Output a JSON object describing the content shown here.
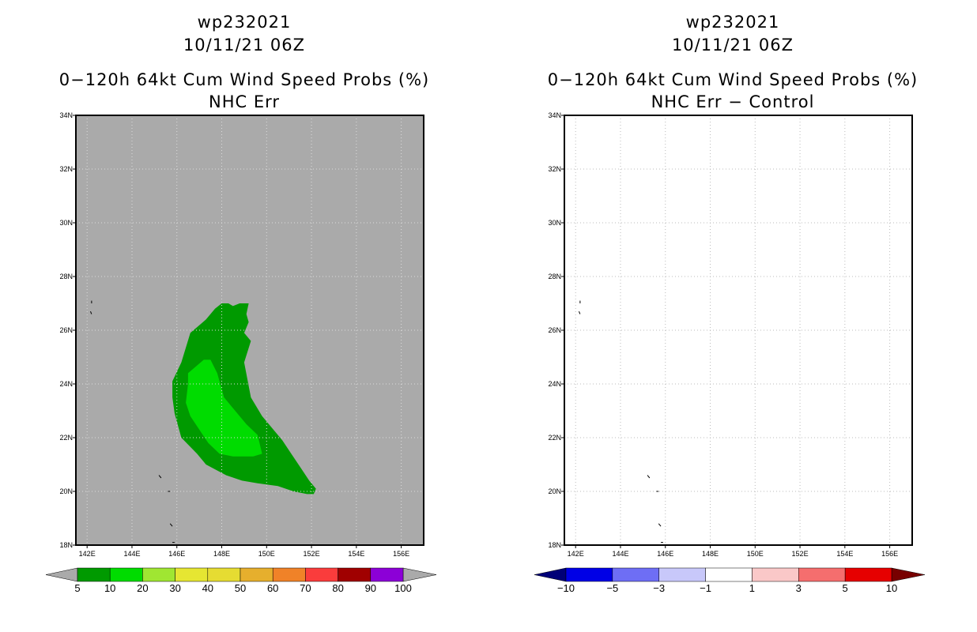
{
  "panels": [
    {
      "storm_id": "wp232021",
      "datetime": "10/11/21 06Z",
      "title": "0−120h 64kt Cum Wind Speed Probs (%)",
      "subtitle": "NHC Err"
    },
    {
      "storm_id": "wp232021",
      "datetime": "10/11/21 06Z",
      "title": "0−120h 64kt Cum Wind Speed Probs (%)",
      "subtitle": "NHC Err − Control"
    }
  ],
  "chart_data": [
    {
      "type": "heatmap",
      "title": "0−120h 64kt Cum Wind Speed Probs (%)",
      "subtitle": "NHC Err",
      "xlim": [
        141.5,
        157
      ],
      "ylim": [
        18,
        34
      ],
      "x_ticks": [
        "142E",
        "144E",
        "146E",
        "148E",
        "150E",
        "152E",
        "154E",
        "156E"
      ],
      "y_ticks": [
        "18N",
        "20N",
        "22N",
        "24N",
        "26N",
        "28N",
        "30N",
        "32N",
        "34N"
      ],
      "background_color": "#aaaaaa",
      "grid": true,
      "contours": [
        {
          "level": 5,
          "color": "#009a00",
          "points": [
            [
              146.2,
              24.8
            ],
            [
              146.6,
              25.9
            ],
            [
              147.3,
              26.4
            ],
            [
              147.7,
              26.8
            ],
            [
              148.0,
              27.0
            ],
            [
              148.3,
              27.0
            ],
            [
              148.5,
              26.9
            ],
            [
              148.8,
              27.0
            ],
            [
              149.2,
              27.0
            ],
            [
              149.1,
              26.6
            ],
            [
              149.2,
              26.3
            ],
            [
              149.0,
              25.9
            ],
            [
              149.3,
              25.6
            ],
            [
              149.0,
              24.8
            ],
            [
              149.3,
              23.5
            ],
            [
              149.8,
              22.8
            ],
            [
              150.2,
              22.4
            ],
            [
              150.7,
              21.9
            ],
            [
              151.1,
              21.4
            ],
            [
              151.5,
              20.9
            ],
            [
              151.9,
              20.4
            ],
            [
              152.2,
              20.1
            ],
            [
              152.1,
              19.9
            ],
            [
              151.8,
              19.9
            ],
            [
              151.2,
              20.0
            ],
            [
              150.5,
              20.2
            ],
            [
              149.6,
              20.3
            ],
            [
              148.9,
              20.4
            ],
            [
              148.2,
              20.6
            ],
            [
              147.3,
              21.0
            ],
            [
              146.9,
              21.4
            ],
            [
              146.2,
              22.0
            ],
            [
              145.9,
              22.9
            ],
            [
              145.8,
              23.5
            ],
            [
              145.8,
              24.1
            ]
          ]
        },
        {
          "level": 10,
          "color": "#00dc00",
          "points": [
            [
              146.5,
              24.4
            ],
            [
              147.2,
              24.9
            ],
            [
              147.5,
              24.9
            ],
            [
              147.8,
              24.4
            ],
            [
              148.1,
              23.5
            ],
            [
              148.5,
              23.1
            ],
            [
              149.1,
              22.5
            ],
            [
              149.6,
              22.1
            ],
            [
              149.8,
              21.4
            ],
            [
              149.4,
              21.3
            ],
            [
              148.5,
              21.3
            ],
            [
              147.9,
              21.4
            ],
            [
              147.4,
              21.8
            ],
            [
              147.0,
              22.3
            ],
            [
              146.6,
              22.8
            ],
            [
              146.4,
              23.3
            ],
            [
              146.5,
              24.0
            ]
          ]
        }
      ],
      "colorbar": {
        "labels": [
          "5",
          "10",
          "20",
          "30",
          "40",
          "50",
          "60",
          "70",
          "80",
          "90",
          "100"
        ],
        "under_color": "#aaaaaa",
        "over_color": "#aaaaaa",
        "colors": [
          "#009a00",
          "#00dc00",
          "#a0e632",
          "#e6e632",
          "#e6dc32",
          "#e6af2d",
          "#f08228",
          "#fa3c3c",
          "#a00000",
          "#8c00d7"
        ]
      }
    },
    {
      "type": "heatmap",
      "title": "0−120h 64kt Cum Wind Speed Probs (%)",
      "subtitle": "NHC Err − Control",
      "xlim": [
        141.5,
        157
      ],
      "ylim": [
        18,
        34
      ],
      "x_ticks": [
        "142E",
        "144E",
        "146E",
        "148E",
        "150E",
        "152E",
        "154E",
        "156E"
      ],
      "y_ticks": [
        "18N",
        "20N",
        "22N",
        "24N",
        "26N",
        "28N",
        "30N",
        "32N",
        "34N"
      ],
      "background_color": "#ffffff",
      "grid": true,
      "contours": [],
      "colorbar": {
        "labels": [
          "−10",
          "−5",
          "−3",
          "−1",
          "1",
          "3",
          "5",
          "10"
        ],
        "under_color": "#000078",
        "over_color": "#780000",
        "colors": [
          "#0000e6",
          "#6e6ef5",
          "#c8c8fa",
          "#ffffff",
          "#fac8c8",
          "#f56e6e",
          "#e60000"
        ]
      }
    }
  ]
}
